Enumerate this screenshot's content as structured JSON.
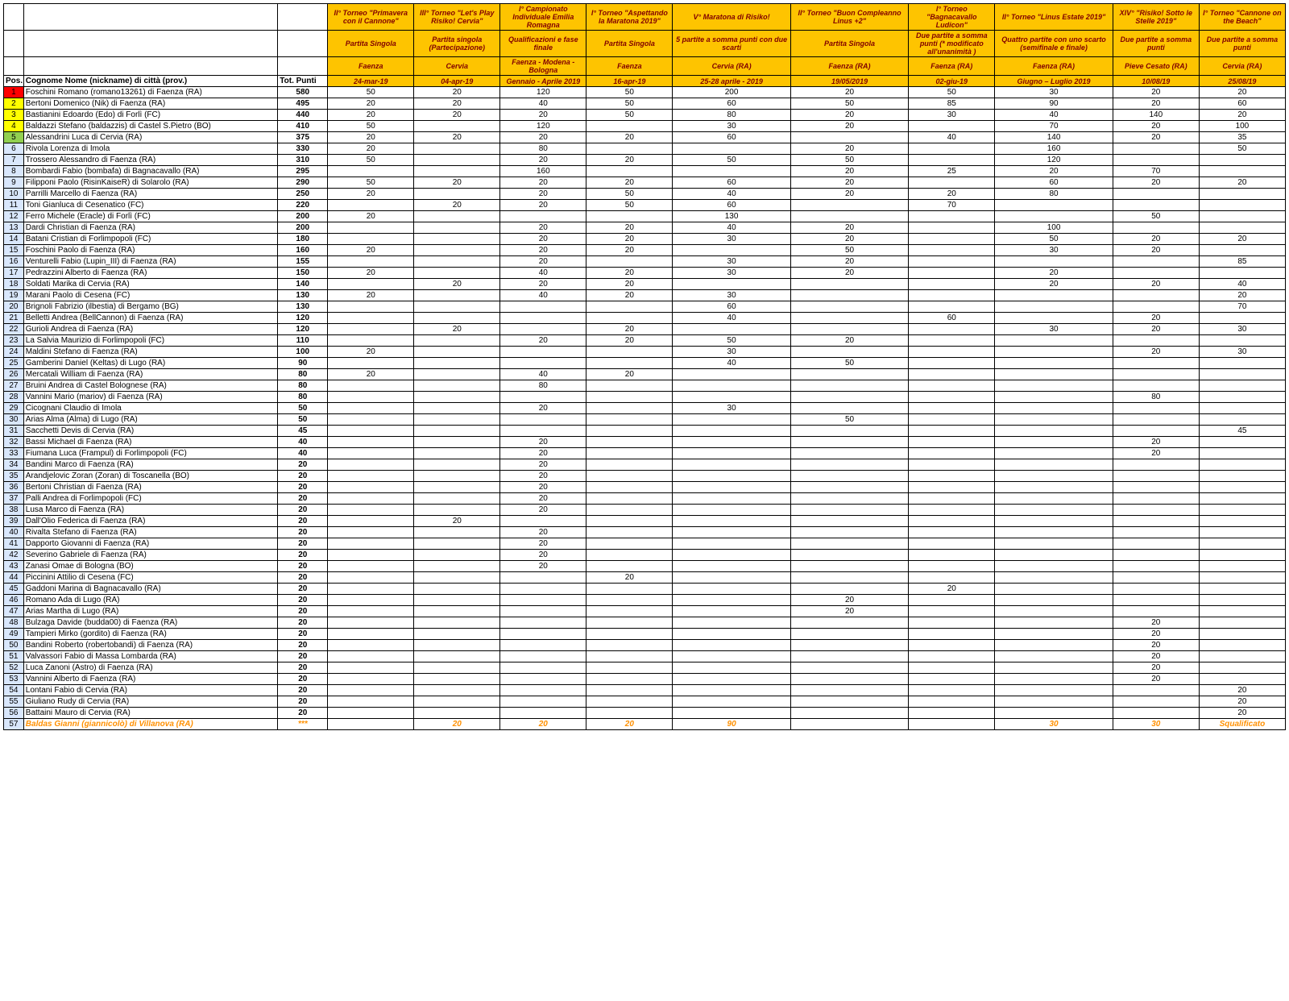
{
  "columns": {
    "pos": "Pos.",
    "name": "Cognome Nome (nickname) di città (prov.)",
    "pts": "Tot. Punti"
  },
  "posColors": [
    "#ff0000",
    "#ffff00",
    "#ffff00",
    "#ffff00",
    "#92d050"
  ],
  "events": [
    {
      "title": "II° Torneo \"Primavera con il Cannone\"",
      "format": "Partita Singola",
      "city": "Faenza",
      "date": "24-mar-19",
      "w": "col-ev"
    },
    {
      "title": "III° Torneo \"Let's Play Risiko! Cervia\"",
      "format": "Partita singola (Partecipazione)",
      "city": "Cervia",
      "date": "04-apr-19",
      "w": "col-ev"
    },
    {
      "title": "I° Campionato Individuale Emilia Romagna",
      "format": "Qualificazioni e fase finale",
      "city": "Faenza - Modena - Bologna",
      "date": "Gennaio - Aprile 2019",
      "w": "col-ev"
    },
    {
      "title": "I° Torneo \"Aspettando la Maratona 2019\"",
      "format": "Partita Singola",
      "city": "Faenza",
      "date": "16-apr-19",
      "w": "col-ev"
    },
    {
      "title": "V° Maratona di Risiko!",
      "format": "5 partite a somma punti con due scarti",
      "city": "Cervia (RA)",
      "date": "25-28 aprile - 2019",
      "w": "col-ev-wide"
    },
    {
      "title": "II° Torneo \"Buon Compleanno Linus +2\"",
      "format": "Partita Singola",
      "city": "Faenza (RA)",
      "date": "19/05/2019",
      "w": "col-ev-wide"
    },
    {
      "title": "I° Torneo \"Bagnacavallo Ludicon\"",
      "format": "Due partite a somma punti (* modificato all'unanimità )",
      "city": "Faenza (RA)",
      "date": "02-giu-19",
      "w": "col-ev"
    },
    {
      "title": "II° Torneo \"Linus Estate 2019\"",
      "format": "Quattro partite con uno scarto (semifinale e finale)",
      "city": "Faenza (RA)",
      "date": "Giugno – Luglio 2019",
      "w": "col-ev-wide"
    },
    {
      "title": "XIV° \"Risiko! Sotto le Stelle 2019\"",
      "format": "Due partite a somma punti",
      "city": "Pieve Cesato (RA)",
      "date": "10/08/19",
      "w": "col-ev"
    },
    {
      "title": "I° Torneo \"Cannone on the Beach\"",
      "format": "Due partite a somma punti",
      "city": "Cervia (RA)",
      "date": "25/08/19",
      "w": "col-ev"
    }
  ],
  "rows": [
    {
      "pos": "1",
      "name": "Foschini Romano (romano13261) di Faenza (RA)",
      "pts": "580",
      "v": [
        "50",
        "20",
        "120",
        "50",
        "200",
        "20",
        "50",
        "30",
        "20",
        "20"
      ]
    },
    {
      "pos": "2",
      "name": "Bertoni Domenico (Nik) di Faenza (RA)",
      "pts": "495",
      "v": [
        "20",
        "20",
        "40",
        "50",
        "60",
        "50",
        "85",
        "90",
        "20",
        "60"
      ]
    },
    {
      "pos": "3",
      "name": "Bastianini Edoardo (Edo) di Forlì (FC)",
      "pts": "440",
      "v": [
        "20",
        "20",
        "20",
        "50",
        "80",
        "20",
        "30",
        "40",
        "140",
        "20"
      ]
    },
    {
      "pos": "4",
      "name": "Baldazzi Stefano (baldazzis) di Castel S.Pietro (BO)",
      "pts": "410",
      "v": [
        "50",
        "",
        "120",
        "",
        "30",
        "20",
        "",
        "70",
        "20",
        "100"
      ]
    },
    {
      "pos": "5",
      "name": "Alessandrini Luca di Cervia (RA)",
      "pts": "375",
      "v": [
        "20",
        "20",
        "20",
        "20",
        "60",
        "",
        "40",
        "140",
        "20",
        "35"
      ]
    },
    {
      "pos": "6",
      "name": "Rivola Lorenza di Imola",
      "pts": "330",
      "v": [
        "20",
        "",
        "80",
        "",
        "",
        "20",
        "",
        "160",
        "",
        "50"
      ]
    },
    {
      "pos": "7",
      "name": "Trossero Alessandro di Faenza (RA)",
      "pts": "310",
      "v": [
        "50",
        "",
        "20",
        "20",
        "50",
        "50",
        "",
        "120",
        "",
        ""
      ]
    },
    {
      "pos": "8",
      "name": "Bombardi Fabio (bombafa) di Bagnacavallo (RA)",
      "pts": "295",
      "v": [
        "",
        "",
        "160",
        "",
        "",
        "20",
        "25",
        "20",
        "70",
        ""
      ]
    },
    {
      "pos": "9",
      "name": "Filipponi Paolo (RisinKaiseR) di Solarolo (RA)",
      "pts": "290",
      "v": [
        "50",
        "20",
        "20",
        "20",
        "60",
        "20",
        "",
        "60",
        "20",
        "20"
      ]
    },
    {
      "pos": "10",
      "name": "Parrilli Marcello di Faenza (RA)",
      "pts": "250",
      "v": [
        "20",
        "",
        "20",
        "50",
        "40",
        "20",
        "20",
        "80",
        "",
        ""
      ]
    },
    {
      "pos": "11",
      "name": "Toni Gianluca di Cesenatico (FC)",
      "pts": "220",
      "v": [
        "",
        "20",
        "20",
        "50",
        "60",
        "",
        "70",
        "",
        "",
        ""
      ]
    },
    {
      "pos": "12",
      "name": "Ferro Michele (Eracle) di Forlì (FC)",
      "pts": "200",
      "v": [
        "20",
        "",
        "",
        "",
        "130",
        "",
        "",
        "",
        "50",
        ""
      ]
    },
    {
      "pos": "13",
      "name": "Dardi Christian di Faenza (RA)",
      "pts": "200",
      "v": [
        "",
        "",
        "20",
        "20",
        "40",
        "20",
        "",
        "100",
        "",
        ""
      ]
    },
    {
      "pos": "14",
      "name": "Batani Cristian di Forlimpopoli (FC)",
      "pts": "180",
      "v": [
        "",
        "",
        "20",
        "20",
        "30",
        "20",
        "",
        "50",
        "20",
        "20"
      ]
    },
    {
      "pos": "15",
      "name": "Foschini Paolo di Faenza (RA)",
      "pts": "160",
      "v": [
        "20",
        "",
        "20",
        "20",
        "",
        "50",
        "",
        "30",
        "20",
        ""
      ]
    },
    {
      "pos": "16",
      "name": "Venturelli Fabio (Lupin_III) di Faenza (RA)",
      "pts": "155",
      "v": [
        "",
        "",
        "20",
        "",
        "30",
        "20",
        "",
        "",
        "",
        "85"
      ]
    },
    {
      "pos": "17",
      "name": "Pedrazzini Alberto di Faenza (RA)",
      "pts": "150",
      "v": [
        "20",
        "",
        "40",
        "20",
        "30",
        "20",
        "",
        "20",
        "",
        ""
      ]
    },
    {
      "pos": "18",
      "name": "Soldati Marika di Cervia (RA)",
      "pts": "140",
      "v": [
        "",
        "20",
        "20",
        "20",
        "",
        "",
        "",
        "20",
        "20",
        "40"
      ]
    },
    {
      "pos": "19",
      "name": "Marani Paolo di Cesena (FC)",
      "pts": "130",
      "v": [
        "20",
        "",
        "40",
        "20",
        "30",
        "",
        "",
        "",
        "",
        "20"
      ]
    },
    {
      "pos": "20",
      "name": "Brignoli Fabrizio (ilbestia) di Bergamo (BG)",
      "pts": "130",
      "v": [
        "",
        "",
        "",
        "",
        "60",
        "",
        "",
        "",
        "",
        "70"
      ]
    },
    {
      "pos": "21",
      "name": "Belletti Andrea (BellCannon) di Faenza (RA)",
      "pts": "120",
      "v": [
        "",
        "",
        "",
        "",
        "40",
        "",
        "60",
        "",
        "20",
        ""
      ]
    },
    {
      "pos": "22",
      "name": "Gurioli Andrea di Faenza (RA)",
      "pts": "120",
      "v": [
        "",
        "20",
        "",
        "20",
        "",
        "",
        "",
        "30",
        "20",
        "30"
      ]
    },
    {
      "pos": "23",
      "name": "La Salvia Maurizio di Forlimpopoli (FC)",
      "pts": "110",
      "v": [
        "",
        "",
        "20",
        "20",
        "50",
        "20",
        "",
        "",
        "",
        ""
      ]
    },
    {
      "pos": "24",
      "name": "Maldini Stefano di Faenza (RA)",
      "pts": "100",
      "v": [
        "20",
        "",
        "",
        "",
        "30",
        "",
        "",
        "",
        "20",
        "30"
      ]
    },
    {
      "pos": "25",
      "name": "Gamberini Daniel (Keltas) di Lugo (RA)",
      "pts": "90",
      "v": [
        "",
        "",
        "",
        "",
        "40",
        "50",
        "",
        "",
        "",
        ""
      ]
    },
    {
      "pos": "26",
      "name": "Mercatali William di Faenza (RA)",
      "pts": "80",
      "v": [
        "20",
        "",
        "40",
        "20",
        "",
        "",
        "",
        "",
        "",
        ""
      ]
    },
    {
      "pos": "27",
      "name": "Bruini Andrea di Castel Bolognese (RA)",
      "pts": "80",
      "v": [
        "",
        "",
        "80",
        "",
        "",
        "",
        "",
        "",
        "",
        ""
      ]
    },
    {
      "pos": "28",
      "name": "Vannini Mario (mariov) di Faenza (RA)",
      "pts": "80",
      "v": [
        "",
        "",
        "",
        "",
        "",
        "",
        "",
        "",
        "80",
        ""
      ]
    },
    {
      "pos": "29",
      "name": "Cicognani Claudio di Imola",
      "pts": "50",
      "v": [
        "",
        "",
        "20",
        "",
        "30",
        "",
        "",
        "",
        "",
        ""
      ]
    },
    {
      "pos": "30",
      "name": "Arias Alma (Alma) di Lugo (RA)",
      "pts": "50",
      "v": [
        "",
        "",
        "",
        "",
        "",
        "50",
        "",
        "",
        "",
        ""
      ]
    },
    {
      "pos": "31",
      "name": "Sacchetti Devis di Cervia (RA)",
      "pts": "45",
      "v": [
        "",
        "",
        "",
        "",
        "",
        "",
        "",
        "",
        "",
        "45"
      ]
    },
    {
      "pos": "32",
      "name": "Bassi Michael di Faenza (RA)",
      "pts": "40",
      "v": [
        "",
        "",
        "20",
        "",
        "",
        "",
        "",
        "",
        "20",
        ""
      ]
    },
    {
      "pos": "33",
      "name": "Fiumana Luca (Frampul) di Forlimpopoli (FC)",
      "pts": "40",
      "v": [
        "",
        "",
        "20",
        "",
        "",
        "",
        "",
        "",
        "20",
        ""
      ]
    },
    {
      "pos": "34",
      "name": "Bandini Marco di Faenza (RA)",
      "pts": "20",
      "v": [
        "",
        "",
        "20",
        "",
        "",
        "",
        "",
        "",
        "",
        ""
      ]
    },
    {
      "pos": "35",
      "name": "Arandjelovic Zoran (Zoran) di Toscanella (BO)",
      "pts": "20",
      "v": [
        "",
        "",
        "20",
        "",
        "",
        "",
        "",
        "",
        "",
        ""
      ]
    },
    {
      "pos": "36",
      "name": "Bertoni Christian di Faenza (RA)",
      "pts": "20",
      "v": [
        "",
        "",
        "20",
        "",
        "",
        "",
        "",
        "",
        "",
        ""
      ]
    },
    {
      "pos": "37",
      "name": "Palli Andrea di Forlimpopoli (FC)",
      "pts": "20",
      "v": [
        "",
        "",
        "20",
        "",
        "",
        "",
        "",
        "",
        "",
        ""
      ]
    },
    {
      "pos": "38",
      "name": "Lusa Marco di Faenza (RA)",
      "pts": "20",
      "v": [
        "",
        "",
        "20",
        "",
        "",
        "",
        "",
        "",
        "",
        ""
      ]
    },
    {
      "pos": "39",
      "name": "Dall'Olio Federica di Faenza (RA)",
      "pts": "20",
      "v": [
        "",
        "20",
        "",
        "",
        "",
        "",
        "",
        "",
        "",
        ""
      ]
    },
    {
      "pos": "40",
      "name": "Rivalta Stefano di Faenza (RA)",
      "pts": "20",
      "v": [
        "",
        "",
        "20",
        "",
        "",
        "",
        "",
        "",
        "",
        ""
      ]
    },
    {
      "pos": "41",
      "name": "Dapporto Giovanni di Faenza (RA)",
      "pts": "20",
      "v": [
        "",
        "",
        "20",
        "",
        "",
        "",
        "",
        "",
        "",
        ""
      ]
    },
    {
      "pos": "42",
      "name": "Severino Gabriele di Faenza (RA)",
      "pts": "20",
      "v": [
        "",
        "",
        "20",
        "",
        "",
        "",
        "",
        "",
        "",
        ""
      ]
    },
    {
      "pos": "43",
      "name": "Zanasi Omae di Bologna (BO)",
      "pts": "20",
      "v": [
        "",
        "",
        "20",
        "",
        "",
        "",
        "",
        "",
        "",
        ""
      ]
    },
    {
      "pos": "44",
      "name": "Piccinini Attilio di Cesena (FC)",
      "pts": "20",
      "v": [
        "",
        "",
        "",
        "20",
        "",
        "",
        "",
        "",
        "",
        ""
      ]
    },
    {
      "pos": "45",
      "name": "Gaddoni Marina di Bagnacavallo (RA)",
      "pts": "20",
      "v": [
        "",
        "",
        "",
        "",
        "",
        "",
        "20",
        "",
        "",
        ""
      ]
    },
    {
      "pos": "46",
      "name": "Romano Ada di Lugo (RA)",
      "pts": "20",
      "v": [
        "",
        "",
        "",
        "",
        "",
        "20",
        "",
        "",
        "",
        ""
      ]
    },
    {
      "pos": "47",
      "name": "Arias Martha di Lugo (RA)",
      "pts": "20",
      "v": [
        "",
        "",
        "",
        "",
        "",
        "20",
        "",
        "",
        "",
        ""
      ]
    },
    {
      "pos": "48",
      "name": "Bulzaga Davide (budda00) di Faenza (RA)",
      "pts": "20",
      "v": [
        "",
        "",
        "",
        "",
        "",
        "",
        "",
        "",
        "20",
        ""
      ]
    },
    {
      "pos": "49",
      "name": "Tampieri Mirko (gordito) di Faenza (RA)",
      "pts": "20",
      "v": [
        "",
        "",
        "",
        "",
        "",
        "",
        "",
        "",
        "20",
        ""
      ]
    },
    {
      "pos": "50",
      "name": "Bandini Roberto (robertobandi) di Faenza (RA)",
      "pts": "20",
      "v": [
        "",
        "",
        "",
        "",
        "",
        "",
        "",
        "",
        "20",
        ""
      ]
    },
    {
      "pos": "51",
      "name": "Valvassori Fabio di Massa Lombarda (RA)",
      "pts": "20",
      "v": [
        "",
        "",
        "",
        "",
        "",
        "",
        "",
        "",
        "20",
        ""
      ]
    },
    {
      "pos": "52",
      "name": "Luca Zanoni (Astro) di Faenza (RA)",
      "pts": "20",
      "v": [
        "",
        "",
        "",
        "",
        "",
        "",
        "",
        "",
        "20",
        ""
      ]
    },
    {
      "pos": "53",
      "name": "Vannini Alberto di Faenza (RA)",
      "pts": "20",
      "v": [
        "",
        "",
        "",
        "",
        "",
        "",
        "",
        "",
        "20",
        ""
      ]
    },
    {
      "pos": "54",
      "name": "Lontani Fabio di Cervia (RA)",
      "pts": "20",
      "v": [
        "",
        "",
        "",
        "",
        "",
        "",
        "",
        "",
        "",
        "20"
      ]
    },
    {
      "pos": "55",
      "name": "Giuliano Rudy di Cervia (RA)",
      "pts": "20",
      "v": [
        "",
        "",
        "",
        "",
        "",
        "",
        "",
        "",
        "",
        "20"
      ]
    },
    {
      "pos": "56",
      "name": "Battaini Mauro di Cervia (RA)",
      "pts": "20",
      "v": [
        "",
        "",
        "",
        "",
        "",
        "",
        "",
        "",
        "",
        "20"
      ]
    },
    {
      "pos": "57",
      "name": "Baldas Gianni (giannicolò) di Villanova (RA)",
      "pts": "***",
      "v": [
        "",
        "20",
        "20",
        "20",
        "90",
        "",
        "",
        "30",
        "30",
        "Squalificato"
      ],
      "excl": true
    }
  ]
}
